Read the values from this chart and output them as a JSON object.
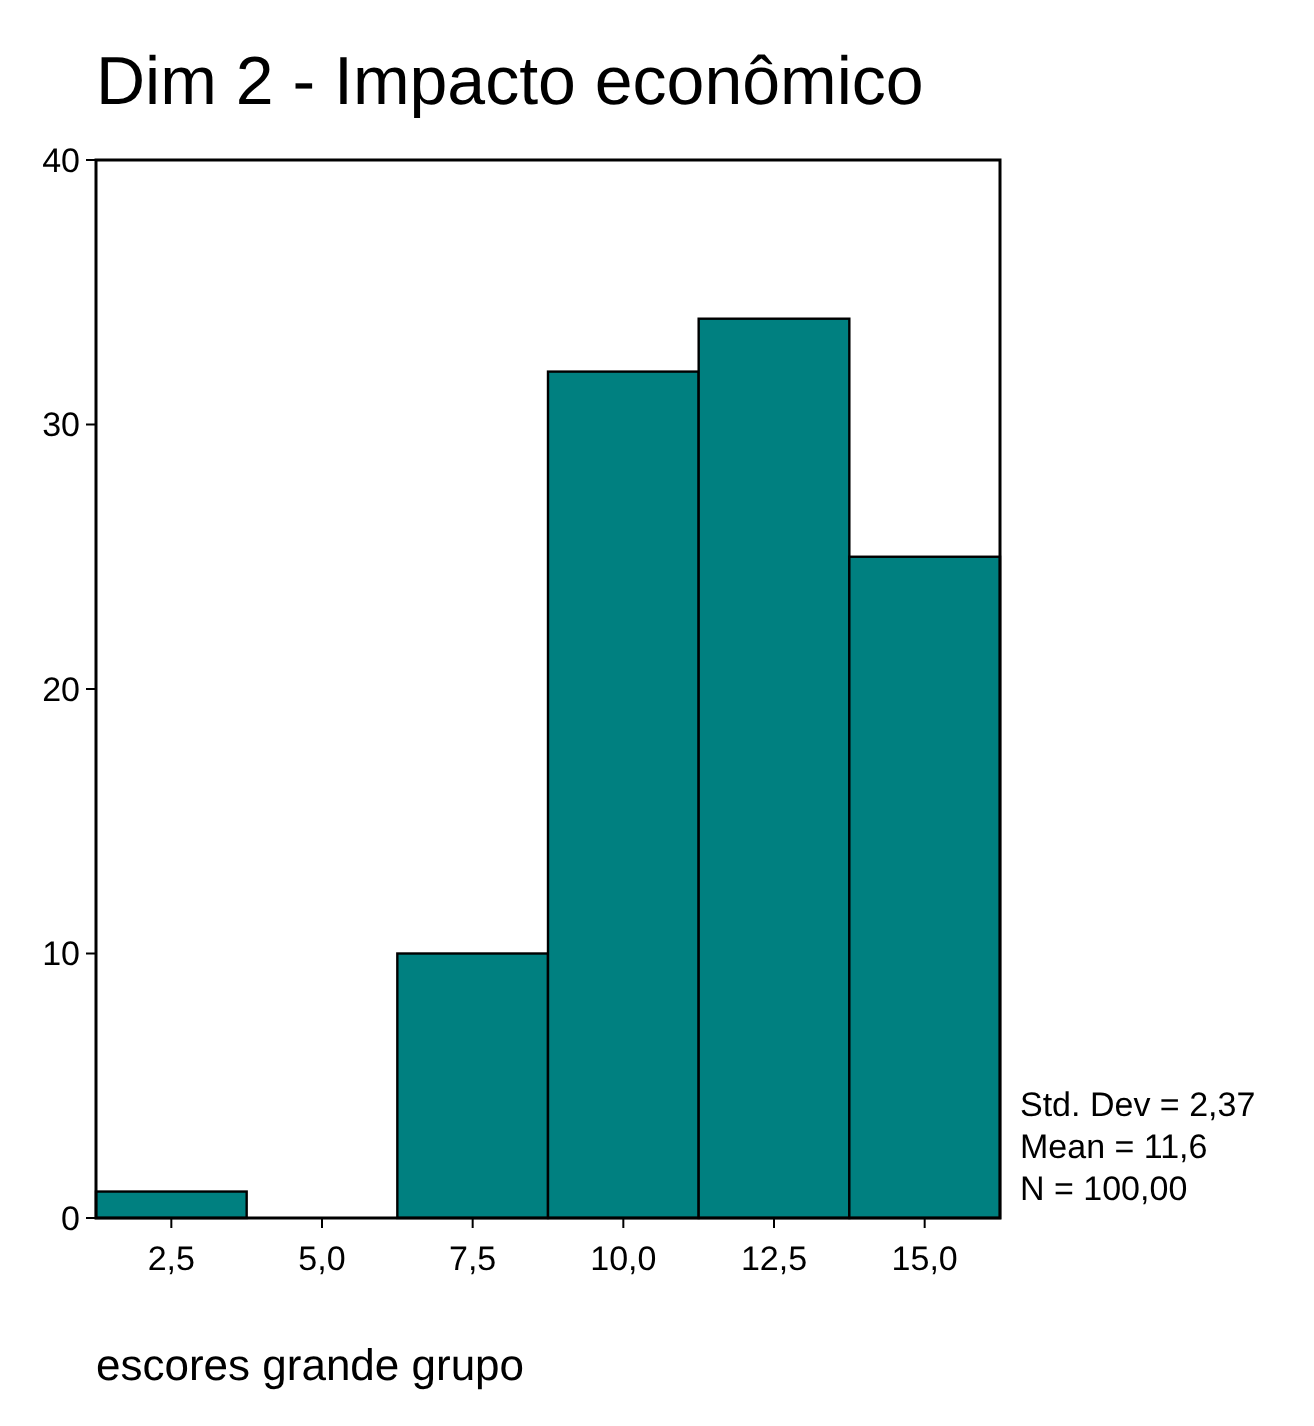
{
  "chart_data": {
    "type": "histogram",
    "title": "Dim 2 - Impacto econômico",
    "xlabel": "escores grande grupo",
    "bins": [
      1.25,
      3.75,
      6.25,
      8.75,
      11.25,
      13.75,
      16.25
    ],
    "values": [
      1,
      0,
      10,
      32,
      34,
      25
    ],
    "color": "#008080",
    "xlim": [
      1.25,
      16.25
    ],
    "xticks": [
      {
        "value": 2.5,
        "label": "2,5"
      },
      {
        "value": 5,
        "label": "5,0"
      },
      {
        "value": 7.5,
        "label": "7,5"
      },
      {
        "value": 10,
        "label": "10,0"
      },
      {
        "value": 12.5,
        "label": "12,5"
      },
      {
        "value": 15,
        "label": "15,0"
      }
    ],
    "ylim": [
      0,
      40
    ],
    "yticks": [
      0,
      10,
      20,
      30,
      40
    ],
    "grid": false,
    "annotations": [
      "Std. Dev = 2,37",
      "Mean = 11,6",
      "N = 100,00"
    ]
  }
}
